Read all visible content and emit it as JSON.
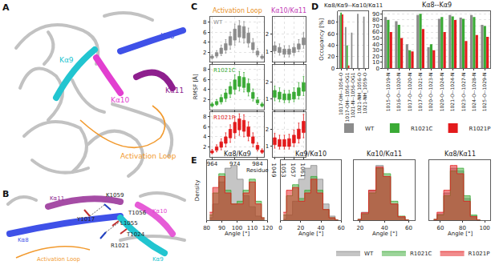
{
  "figure": {
    "panel_labels": [
      "A",
      "B",
      "C",
      "D",
      "E"
    ]
  },
  "diagrams": [
    {
      "labels": [
        "Kα8",
        "Kα9",
        "Kα10",
        "Kα11",
        "Activation Loop"
      ]
    },
    {
      "labels": [
        "Kα11",
        "K1059",
        "Y1017",
        "T1056",
        "L1055",
        "T1024",
        "Kα10",
        "R1021",
        "Kα8",
        "Activation Loop",
        "Kα9"
      ]
    }
  ],
  "chart_data": [
    {
      "type": "box",
      "title": "Activation Loop",
      "annotation": "WT",
      "x": [
        964,
        966,
        968,
        970,
        972,
        974,
        976,
        978,
        980,
        982,
        984,
        986
      ],
      "xlim": [
        963,
        987
      ],
      "xticks": [
        964,
        974,
        984
      ],
      "ylim": [
        0,
        9
      ],
      "yticks": [
        2,
        4,
        6,
        8
      ],
      "grid": true,
      "tick_labels": "y",
      "series": [
        {
          "color": "#8c8c8c",
          "median": [
            1.0,
            1.5,
            2.2,
            3.0,
            4.2,
            5.5,
            6.2,
            6.0,
            4.8,
            3.2,
            1.8,
            1.0
          ],
          "q1": [
            0.8,
            1.2,
            1.7,
            2.4,
            3.4,
            4.4,
            5.0,
            4.8,
            3.8,
            2.5,
            1.4,
            0.8
          ],
          "q3": [
            1.2,
            1.9,
            2.8,
            3.7,
            5.1,
            6.6,
            7.3,
            7.1,
            5.8,
            3.9,
            2.2,
            1.2
          ],
          "lower": [
            0.6,
            0.9,
            1.3,
            1.8,
            2.6,
            3.4,
            4.0,
            3.8,
            3.0,
            1.9,
            1.1,
            0.6
          ],
          "upper": [
            1.5,
            2.3,
            3.4,
            4.5,
            6.0,
            7.6,
            8.3,
            8.1,
            6.8,
            4.7,
            2.7,
            1.5
          ]
        }
      ]
    },
    {
      "type": "box",
      "title": "Kα10/Kα11",
      "x": [
        1049,
        1051,
        1053,
        1055,
        1057,
        1059,
        1061
      ],
      "xlim": [
        1048,
        1062
      ],
      "xticks": [
        1049,
        1053,
        1057,
        1061
      ],
      "ylim": [
        0.4,
        3.0
      ],
      "yticks": [
        1,
        2
      ],
      "grid": true,
      "tick_labels": "y",
      "series": [
        {
          "color": "#8c8c8c",
          "median": [
            1.2,
            1.1,
            1.0,
            1.0,
            1.1,
            1.3,
            1.6
          ],
          "q1": [
            1.05,
            0.95,
            0.85,
            0.85,
            0.95,
            1.15,
            1.4
          ],
          "q3": [
            1.35,
            1.25,
            1.15,
            1.15,
            1.25,
            1.45,
            1.8
          ],
          "lower": [
            0.9,
            0.8,
            0.7,
            0.7,
            0.8,
            1.0,
            1.2
          ],
          "upper": [
            1.55,
            1.45,
            1.35,
            1.35,
            1.45,
            1.7,
            2.1
          ]
        }
      ]
    },
    {
      "type": "box",
      "annotation": "R1021C",
      "y_label": "RMSF [Å]",
      "x": [
        964,
        966,
        968,
        970,
        972,
        974,
        976,
        978,
        980,
        982,
        984,
        986
      ],
      "xlim": [
        963,
        987
      ],
      "xticks": [
        964,
        974,
        984
      ],
      "ylim": [
        0,
        9
      ],
      "yticks": [
        2,
        4,
        6,
        8
      ],
      "grid": true,
      "tick_labels": "y",
      "series": [
        {
          "color": "#3aaa35",
          "median": [
            0.9,
            1.3,
            1.9,
            2.7,
            3.8,
            4.9,
            5.6,
            5.4,
            4.3,
            2.8,
            1.6,
            0.9
          ],
          "q1": [
            0.7,
            1.0,
            1.5,
            2.2,
            3.1,
            4.0,
            4.6,
            4.4,
            3.5,
            2.2,
            1.3,
            0.7
          ],
          "q3": [
            1.1,
            1.6,
            2.4,
            3.3,
            4.6,
            5.9,
            6.6,
            6.4,
            5.2,
            3.4,
            1.9,
            1.1
          ],
          "lower": [
            0.5,
            0.8,
            1.1,
            1.6,
            2.4,
            3.1,
            3.7,
            3.5,
            2.7,
            1.7,
            1.0,
            0.5
          ],
          "upper": [
            1.4,
            2.0,
            2.9,
            4.0,
            5.4,
            6.9,
            7.6,
            7.4,
            6.1,
            4.1,
            2.4,
            1.4
          ]
        }
      ]
    },
    {
      "type": "box",
      "x": [
        1049,
        1051,
        1053,
        1055,
        1057,
        1059,
        1061
      ],
      "xlim": [
        1048,
        1062
      ],
      "xticks": [
        1049,
        1053,
        1057,
        1061
      ],
      "ylim": [
        0.4,
        3.0
      ],
      "yticks": [
        1,
        2
      ],
      "grid": true,
      "tick_labels": "y",
      "series": [
        {
          "color": "#3aaa35",
          "median": [
            1.3,
            1.2,
            1.1,
            1.1,
            1.2,
            1.4,
            1.7
          ],
          "q1": [
            1.1,
            1.0,
            0.95,
            0.95,
            1.0,
            1.2,
            1.45
          ],
          "q3": [
            1.5,
            1.4,
            1.3,
            1.3,
            1.4,
            1.65,
            1.95
          ],
          "lower": [
            0.9,
            0.85,
            0.8,
            0.8,
            0.85,
            1.0,
            1.2
          ],
          "upper": [
            1.75,
            1.65,
            1.5,
            1.5,
            1.65,
            1.95,
            2.3
          ]
        }
      ]
    },
    {
      "type": "box",
      "annotation": "R1021P",
      "x_label": "Residue",
      "x": [
        964,
        966,
        968,
        970,
        972,
        974,
        976,
        978,
        980,
        982,
        984,
        986
      ],
      "xlim": [
        963,
        987
      ],
      "xticks": [
        964,
        974,
        984
      ],
      "ylim": [
        0,
        9
      ],
      "yticks": [
        2,
        4,
        6,
        8
      ],
      "grid": true,
      "tick_labels": true,
      "series": [
        {
          "color": "#e31a1c",
          "median": [
            1.0,
            1.6,
            2.4,
            3.3,
            4.6,
            5.8,
            6.5,
            6.2,
            5.0,
            3.3,
            1.9,
            1.1
          ],
          "q1": [
            0.8,
            1.3,
            1.9,
            2.7,
            3.8,
            4.8,
            5.4,
            5.1,
            4.1,
            2.7,
            1.5,
            0.9
          ],
          "q3": [
            1.2,
            2.0,
            3.0,
            4.0,
            5.5,
            6.9,
            7.6,
            7.3,
            6.0,
            4.0,
            2.3,
            1.3
          ],
          "lower": [
            0.6,
            1.0,
            1.4,
            2.0,
            2.9,
            3.7,
            4.3,
            4.0,
            3.2,
            2.0,
            1.2,
            0.7
          ],
          "upper": [
            1.5,
            2.4,
            3.6,
            4.8,
            6.4,
            8.0,
            8.6,
            8.4,
            7.0,
            4.8,
            2.8,
            1.6
          ]
        }
      ]
    },
    {
      "type": "box",
      "x": [
        1049,
        1051,
        1053,
        1055,
        1057,
        1059,
        1061
      ],
      "xlim": [
        1048,
        1062
      ],
      "xticks": [
        1049,
        1053,
        1057,
        1061
      ],
      "ylim": [
        0.4,
        3.0
      ],
      "yticks": [
        1,
        2
      ],
      "grid": true,
      "tick_labels": true,
      "series": [
        {
          "color": "#e31a1c",
          "median": [
            1.3,
            1.2,
            1.2,
            1.2,
            1.4,
            1.7,
            2.1
          ],
          "q1": [
            1.1,
            1.0,
            1.0,
            1.0,
            1.2,
            1.45,
            1.8
          ],
          "q3": [
            1.5,
            1.4,
            1.4,
            1.45,
            1.65,
            2.0,
            2.45
          ],
          "lower": [
            0.9,
            0.85,
            0.85,
            0.85,
            1.0,
            1.2,
            1.5
          ],
          "upper": [
            1.75,
            1.65,
            1.65,
            1.7,
            1.95,
            2.35,
            2.85
          ]
        }
      ]
    },
    {
      "type": "bar",
      "title": "Kα8/Kα9--Kα10/Kα11",
      "y_label": "Occupancy [%]",
      "categories": [
        "1017-OH--1054-O",
        "1017-OH--1056-OG1",
        "1021-N--1056-OG1",
        "1021-NH_1056-O",
        "1021-NH_1059-O"
      ],
      "ylim": [
        0,
        100
      ],
      "yticks": [
        0,
        20,
        40,
        60,
        80
      ],
      "grid": true,
      "series": [
        {
          "name": "WT",
          "color": "#8c8c8c",
          "values": [
            92,
            72,
            62,
            95,
            90
          ]
        },
        {
          "name": "R1021C",
          "color": "#3aaa35",
          "values": [
            97,
            40,
            0,
            0,
            0
          ]
        },
        {
          "name": "R1021P",
          "color": "#e31a1c",
          "values": [
            94,
            5,
            0,
            0,
            0
          ]
        }
      ]
    },
    {
      "type": "bar",
      "title": "Kα8--Kα9",
      "legend": "bottom",
      "categories": [
        "1015-O--1019-N",
        "1016-O--1020-N",
        "1017-O--1020-N",
        "1017-O--1021-N",
        "1020-O--1023-N",
        "1020-O--1024-N",
        "1021-O--1024-N",
        "1023-O--1027-N",
        "1024-O--1028-N",
        "1025-O--1029-N"
      ],
      "ylim": [
        0,
        95
      ],
      "yticks": [
        0,
        10,
        20,
        30,
        40,
        50,
        60,
        70,
        80,
        90
      ],
      "grid": true,
      "series": [
        {
          "name": "WT",
          "color": "#8c8c8c",
          "values": [
            85,
            78,
            40,
            88,
            35,
            82,
            88,
            84,
            88,
            72
          ]
        },
        {
          "name": "R1021C",
          "color": "#3aaa35",
          "values": [
            80,
            72,
            30,
            90,
            40,
            85,
            86,
            82,
            85,
            70
          ]
        },
        {
          "name": "R1021P",
          "color": "#e31a1c",
          "values": [
            60,
            50,
            28,
            65,
            30,
            60,
            80,
            45,
            55,
            52
          ]
        }
      ]
    },
    {
      "type": "area",
      "title": "Kα8/Kα9",
      "x_label": "Angle [°]",
      "y_label": "Density",
      "x": [
        82,
        86,
        90,
        94,
        98,
        102,
        106,
        110,
        114,
        118
      ],
      "xlim": [
        80,
        120
      ],
      "xticks": [
        80,
        90,
        100,
        110,
        120
      ],
      "ylim": [
        0,
        1.1
      ],
      "tick_labels": "x",
      "series": [
        {
          "name": "WT",
          "color": "#8c8c8c",
          "values": [
            0.05,
            0.3,
            0.7,
            0.95,
            1.0,
            0.75,
            0.45,
            0.25,
            0.08,
            0.02
          ]
        },
        {
          "name": "R1021C",
          "color": "#3aaa35",
          "values": [
            0.1,
            0.5,
            0.85,
            0.55,
            0.3,
            0.35,
            0.55,
            0.75,
            0.35,
            0.05
          ]
        },
        {
          "name": "R1021P",
          "color": "#e31a1c",
          "values": [
            0.15,
            0.6,
            0.8,
            0.5,
            0.3,
            0.3,
            0.5,
            0.7,
            0.3,
            0.05
          ]
        }
      ]
    },
    {
      "type": "area",
      "title": "Kα9/Kα10",
      "x_label": "Angle [°]",
      "x": [
        3,
        9,
        15,
        21,
        27,
        33,
        39,
        45,
        51,
        57
      ],
      "xlim": [
        0,
        60
      ],
      "xticks": [
        0,
        20,
        40,
        60
      ],
      "ylim": [
        0,
        1.1
      ],
      "tick_labels": "x",
      "series": [
        {
          "name": "WT",
          "color": "#8c8c8c",
          "values": [
            0.02,
            0.1,
            0.35,
            0.75,
            0.95,
            1.0,
            0.75,
            0.3,
            0.08,
            0.01
          ]
        },
        {
          "name": "R1021C",
          "color": "#3aaa35",
          "values": [
            0.1,
            0.45,
            0.65,
            0.4,
            0.55,
            0.8,
            0.55,
            0.2,
            0.05,
            0.01
          ]
        },
        {
          "name": "R1021P",
          "color": "#e31a1c",
          "values": [
            0.15,
            0.55,
            0.6,
            0.35,
            0.5,
            0.75,
            0.5,
            0.2,
            0.05,
            0.01
          ]
        }
      ]
    },
    {
      "type": "area",
      "title": "Kα10/Kα11",
      "x_label": "Angle [°]",
      "x": [
        18,
        24,
        30,
        36,
        42,
        48,
        54,
        60
      ],
      "xlim": [
        15,
        65
      ],
      "xticks": [
        20,
        40,
        60
      ],
      "ylim": [
        0,
        1.1
      ],
      "tick_labels": "x",
      "series": [
        {
          "name": "WT",
          "color": "#8c8c8c",
          "values": [
            0.02,
            0.15,
            0.55,
            1.0,
            0.8,
            0.3,
            0.06,
            0.01
          ]
        },
        {
          "name": "R1021C",
          "color": "#3aaa35",
          "values": [
            0.02,
            0.12,
            0.5,
            0.95,
            0.85,
            0.35,
            0.08,
            0.01
          ]
        },
        {
          "name": "R1021P",
          "color": "#e31a1c",
          "values": [
            0.02,
            0.14,
            0.55,
            0.97,
            0.8,
            0.3,
            0.07,
            0.01
          ]
        }
      ]
    },
    {
      "type": "area",
      "title": "Kα8/Kα11",
      "x_label": "Angle [°]",
      "legend": "bottom right",
      "x": [
        54,
        60,
        66,
        72,
        78,
        84,
        90,
        96
      ],
      "xlim": [
        50,
        105
      ],
      "xticks": [
        60,
        80,
        100
      ],
      "ylim": [
        0,
        1.1
      ],
      "tick_labels": "x",
      "series": [
        {
          "name": "WT",
          "color": "#8c8c8c",
          "values": [
            0.02,
            0.12,
            0.5,
            0.95,
            0.9,
            0.4,
            0.08,
            0.01
          ]
        },
        {
          "name": "R1021C",
          "color": "#3aaa35",
          "values": [
            0.02,
            0.1,
            0.45,
            0.9,
            0.95,
            0.45,
            0.1,
            0.01
          ]
        },
        {
          "name": "R1021P",
          "color": "#e31a1c",
          "values": [
            0.02,
            0.15,
            0.55,
            1.0,
            0.85,
            0.35,
            0.07,
            0.01
          ]
        }
      ]
    }
  ]
}
